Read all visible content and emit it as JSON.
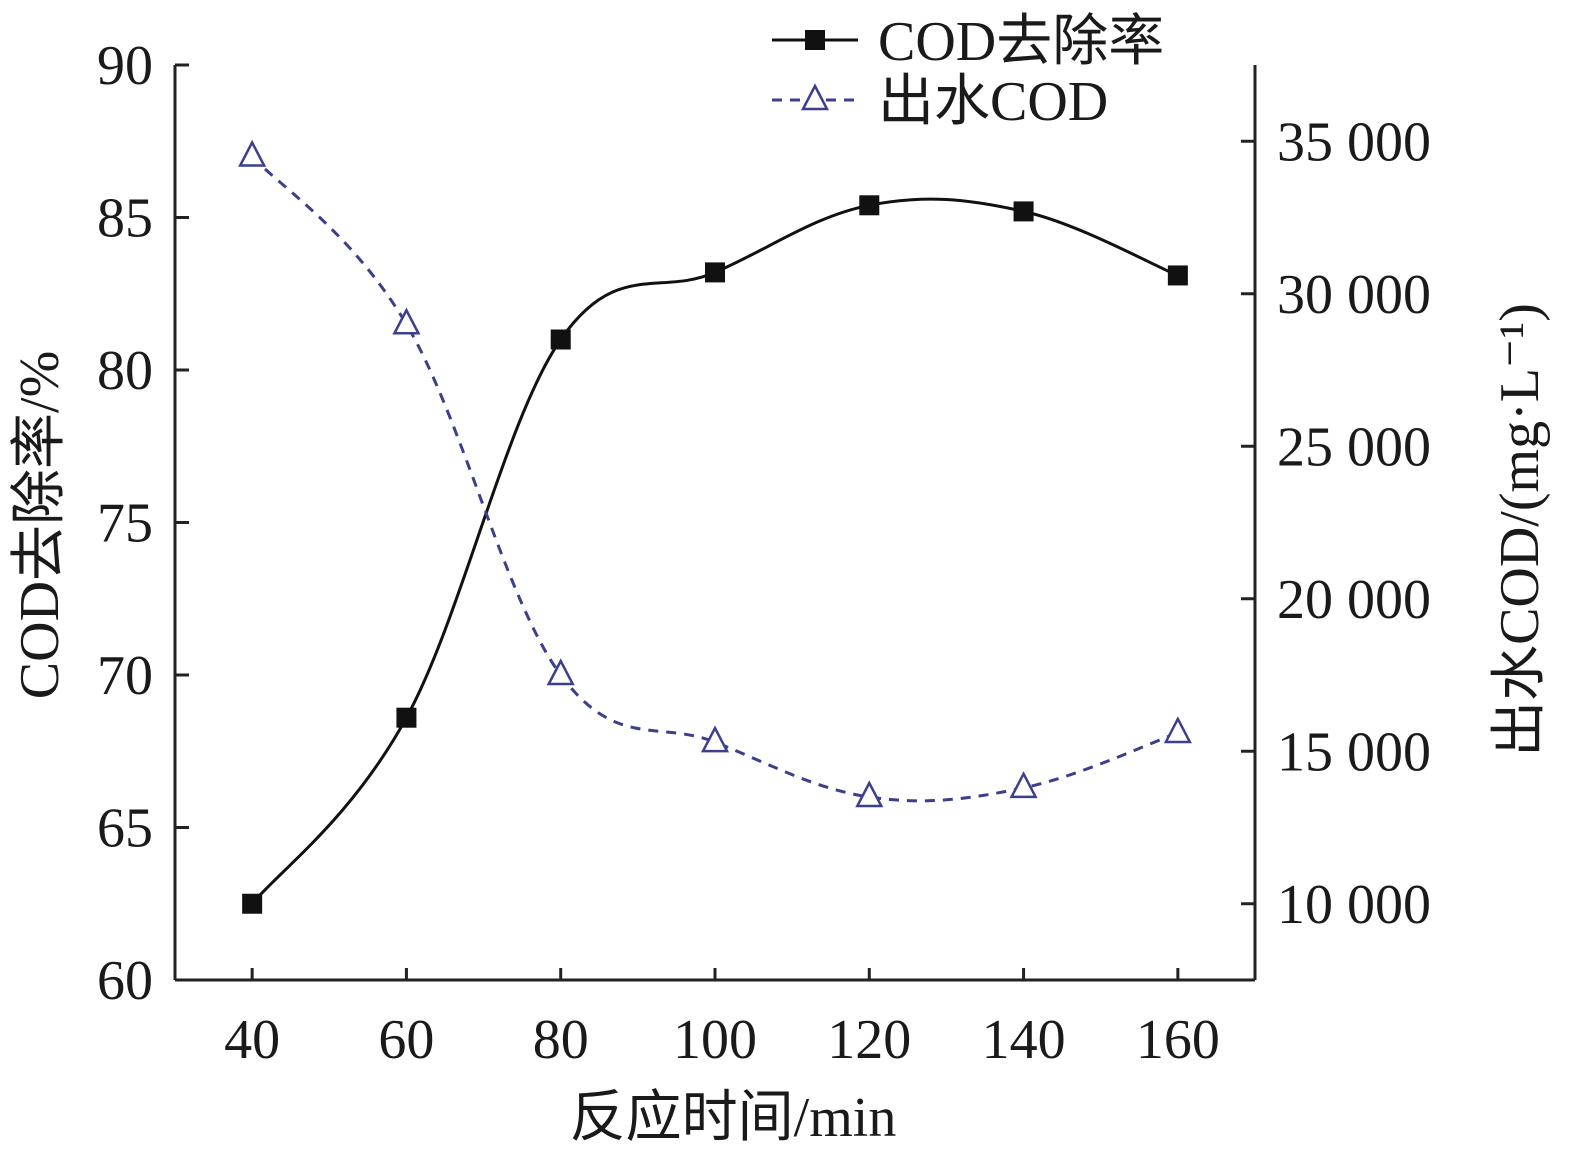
{
  "chart_data": {
    "type": "line",
    "x": [
      40,
      60,
      80,
      100,
      120,
      140,
      160
    ],
    "xlabel": "反应时间/min",
    "xlim": [
      30,
      170
    ],
    "x_ticks": [
      "40",
      "60",
      "80",
      "100",
      "120",
      "140",
      "160"
    ],
    "ylabel_left": "COD去除率/%",
    "ylim_left": [
      60,
      90
    ],
    "y_ticks_left": [
      "60",
      "65",
      "70",
      "75",
      "80",
      "85",
      "90"
    ],
    "ylabel_right": "出水COD/(mg·L⁻¹)",
    "ylim_right": [
      7500,
      37500
    ],
    "y_ticks_right": [
      "10 000",
      "15 000",
      "20 000",
      "25 000",
      "30 000",
      "35 000"
    ],
    "y_tick_values_right": [
      10000,
      15000,
      20000,
      25000,
      30000,
      35000
    ],
    "legend_position": "top-right",
    "grid": false,
    "series": [
      {
        "name": "COD去除率",
        "axis": "left",
        "values": [
          62.5,
          68.6,
          81.0,
          83.2,
          85.4,
          85.2,
          83.1
        ],
        "line_style": "solid",
        "marker": "filled-square",
        "color": "#111111"
      },
      {
        "name": "出水COD",
        "axis": "right",
        "values": [
          34500,
          29000,
          17500,
          15300,
          13500,
          13800,
          15600
        ],
        "line_style": "dashed",
        "marker": "open-triangle",
        "color": "#3b3f8c"
      }
    ]
  }
}
